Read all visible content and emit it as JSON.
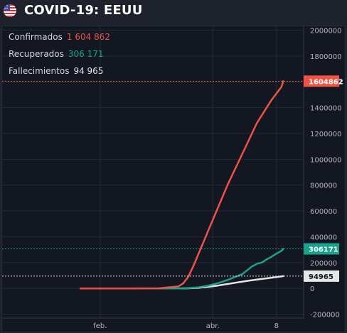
{
  "header": {
    "title": "COVID-19: EEUU",
    "flag_icon": "us-flag-icon"
  },
  "colors": {
    "background": "#131722",
    "header_background": "#1e222d",
    "grid": "#242936",
    "axis_text": "#b2b5be",
    "confirmed": "#ef5343",
    "recovered": "#1aa38c",
    "deaths": "#e6e6e6"
  },
  "legend": {
    "confirmed": {
      "label": "Confirmados",
      "value": "1 604 862"
    },
    "recovered": {
      "label": "Recuperados",
      "value": "306 171"
    },
    "deaths": {
      "label": "Fallecimientos",
      "value": "94 965"
    }
  },
  "chart_data": {
    "type": "line",
    "title": "",
    "xlabel": "",
    "ylabel": "",
    "x_tick_labels": [
      "feb.",
      "abr.",
      "8"
    ],
    "y_ticks": [
      -200000,
      0,
      200000,
      400000,
      600000,
      800000,
      1000000,
      1200000,
      1400000,
      1600000,
      1800000,
      2000000
    ],
    "ylim": [
      -230000,
      2030000
    ],
    "grid": true,
    "legend_placement": "top-left",
    "last_value_labels": [
      "1604862",
      "306171",
      "94965"
    ],
    "series": [
      {
        "name": "Confirmados",
        "color": "#ef5343",
        "points": [
          [
            0,
            0
          ],
          [
            50,
            0
          ],
          [
            80,
            1000
          ],
          [
            100,
            15000
          ],
          [
            105,
            40000
          ],
          [
            110,
            90000
          ],
          [
            115,
            170000
          ],
          [
            120,
            260000
          ],
          [
            125,
            350000
          ],
          [
            130,
            440000
          ],
          [
            135,
            530000
          ],
          [
            140,
            620000
          ],
          [
            145,
            710000
          ],
          [
            150,
            800000
          ],
          [
            155,
            880000
          ],
          [
            160,
            960000
          ],
          [
            165,
            1040000
          ],
          [
            170,
            1120000
          ],
          [
            175,
            1200000
          ],
          [
            180,
            1280000
          ],
          [
            185,
            1340000
          ],
          [
            190,
            1400000
          ],
          [
            195,
            1460000
          ],
          [
            200,
            1510000
          ],
          [
            205,
            1560000
          ],
          [
            207,
            1604862
          ]
        ]
      },
      {
        "name": "Recuperados",
        "color": "#1aa38c",
        "points": [
          [
            0,
            0
          ],
          [
            100,
            0
          ],
          [
            110,
            2000
          ],
          [
            120,
            8000
          ],
          [
            130,
            20000
          ],
          [
            140,
            40000
          ],
          [
            150,
            65000
          ],
          [
            160,
            95000
          ],
          [
            165,
            110000
          ],
          [
            170,
            140000
          ],
          [
            175,
            170000
          ],
          [
            180,
            190000
          ],
          [
            185,
            200000
          ],
          [
            190,
            225000
          ],
          [
            195,
            245000
          ],
          [
            200,
            270000
          ],
          [
            205,
            290000
          ],
          [
            207,
            306171
          ]
        ]
      },
      {
        "name": "Fallecimientos",
        "color": "#e6e6e6",
        "points": [
          [
            0,
            0
          ],
          [
            100,
            0
          ],
          [
            110,
            1000
          ],
          [
            120,
            4000
          ],
          [
            130,
            12000
          ],
          [
            140,
            22000
          ],
          [
            150,
            34000
          ],
          [
            160,
            46000
          ],
          [
            170,
            58000
          ],
          [
            180,
            68000
          ],
          [
            190,
            78000
          ],
          [
            200,
            88000
          ],
          [
            207,
            94965
          ]
        ]
      }
    ],
    "x_tick_positions": [
      20,
      135,
      200
    ],
    "xlim": [
      -80,
      227
    ]
  }
}
